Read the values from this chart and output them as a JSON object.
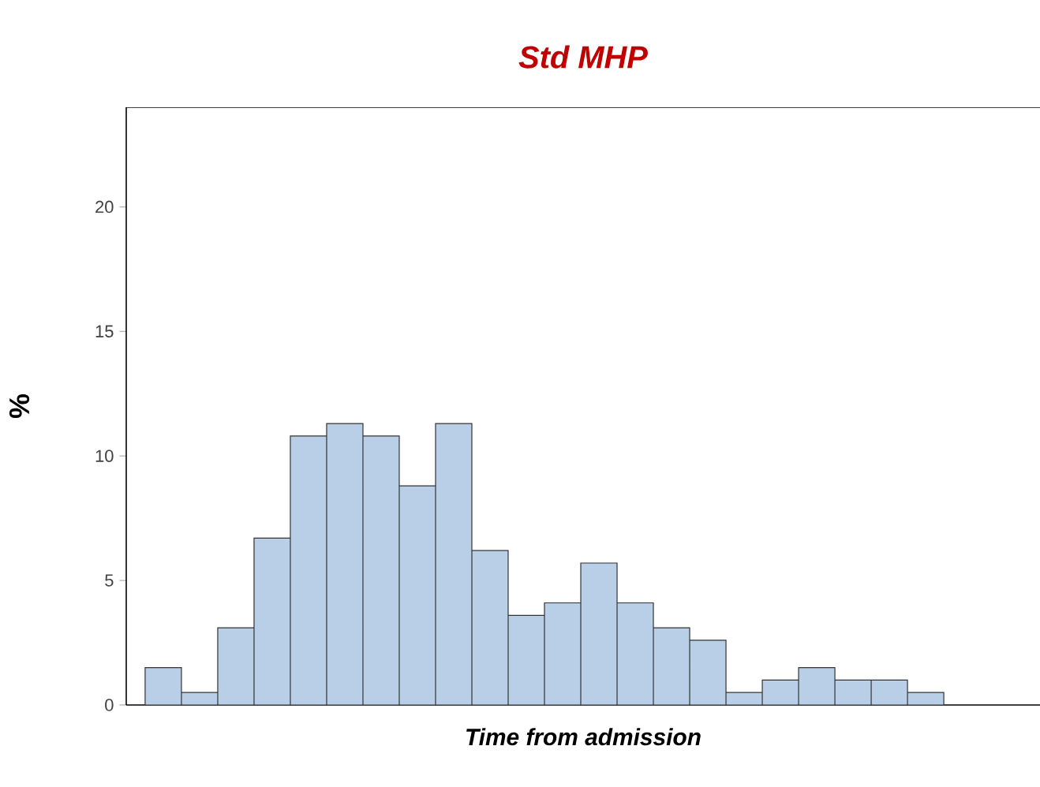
{
  "chart_data": {
    "type": "bar",
    "title": "Std MHP",
    "xlabel": "Time from admission",
    "ylabel": "%",
    "categories": [
      null,
      null,
      null,
      null,
      null,
      null,
      null,
      null,
      null,
      null,
      null,
      null,
      null,
      null,
      null,
      null,
      null,
      null,
      null,
      null,
      null,
      null
    ],
    "values": [
      1.5,
      0.5,
      3.1,
      6.7,
      10.8,
      11.3,
      10.8,
      8.8,
      11.3,
      6.2,
      3.6,
      4.1,
      5.7,
      4.1,
      3.1,
      2.6,
      0.5,
      1.0,
      1.5,
      1.0,
      1.0,
      0.5
    ],
    "color": "#b9cfe7",
    "ylim": [
      0,
      24
    ],
    "yticks": [
      0,
      5,
      10,
      15,
      20
    ],
    "grid": false
  }
}
